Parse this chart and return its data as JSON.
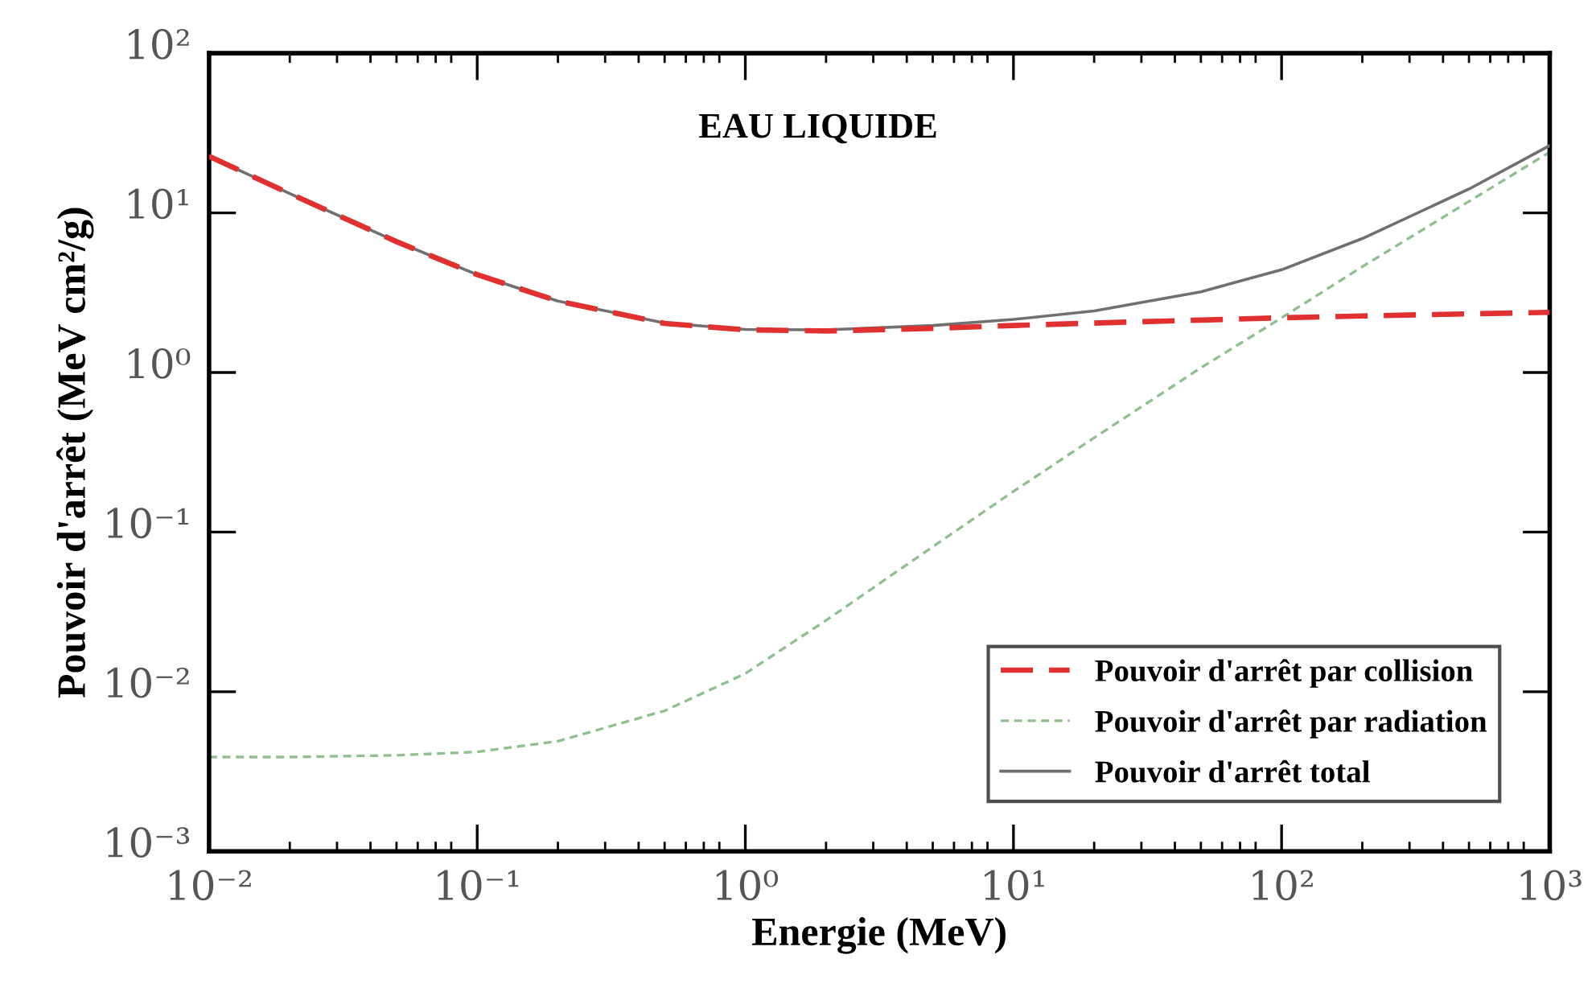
{
  "chart_data": {
    "type": "line",
    "title": "EAU LIQUIDE",
    "xlabel": "Energie (MeV)",
    "ylabel": "Pouvoir d'arrêt (MeV cm²/g)",
    "log": "xy",
    "x": [
      0.01,
      0.02,
      0.05,
      0.1,
      0.2,
      0.5,
      1,
      2,
      5,
      10,
      20,
      50,
      100,
      200,
      500,
      1000
    ],
    "series": [
      {
        "name": "Pouvoir d'arrêt par collision",
        "color": "#e03030",
        "line_style": "dashed",
        "values": [
          22.6,
          13.2,
          6.6,
          4.1,
          2.8,
          2.03,
          1.85,
          1.82,
          1.89,
          1.97,
          2.04,
          2.13,
          2.2,
          2.26,
          2.33,
          2.38
        ]
      },
      {
        "name": "Pouvoir d'arrêt par radiation",
        "color": "#90c090",
        "line_style": "dashed",
        "values": [
          0.0039,
          0.0039,
          0.004,
          0.0042,
          0.0049,
          0.0076,
          0.013,
          0.028,
          0.081,
          0.18,
          0.39,
          1.07,
          2.2,
          4.6,
          11.8,
          24.0
        ]
      },
      {
        "name": "Pouvoir d'arrêt total",
        "color": "#707070",
        "line_style": "solid",
        "values": [
          22.6,
          13.2,
          6.6,
          4.1,
          2.8,
          2.04,
          1.86,
          1.85,
          1.97,
          2.15,
          2.43,
          3.2,
          4.4,
          6.9,
          14.1,
          26.4
        ]
      }
    ],
    "xlim": [
      0.01,
      1000
    ],
    "ylim": [
      0.001,
      100
    ],
    "xticks": [
      {
        "value": 0.01,
        "label": "10⁻²"
      },
      {
        "value": 0.1,
        "label": "10⁻¹"
      },
      {
        "value": 1,
        "label": "10⁰"
      },
      {
        "value": 10,
        "label": "10¹"
      },
      {
        "value": 100,
        "label": "10²"
      },
      {
        "value": 1000,
        "label": "10³"
      }
    ],
    "yticks": [
      {
        "value": 0.001,
        "label": "10⁻³"
      },
      {
        "value": 0.01,
        "label": "10⁻²"
      },
      {
        "value": 0.1,
        "label": "10⁻¹"
      },
      {
        "value": 1,
        "label": "10⁰"
      },
      {
        "value": 10,
        "label": "10¹"
      },
      {
        "value": 100,
        "label": "10²"
      }
    ],
    "grid": false,
    "legend": "bottom right"
  }
}
